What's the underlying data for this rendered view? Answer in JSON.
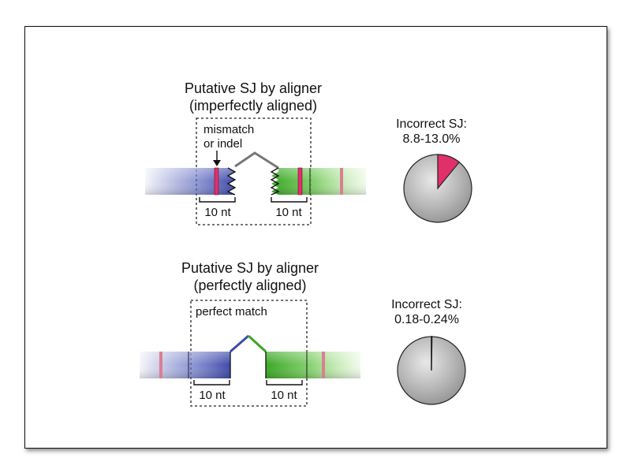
{
  "panels": {
    "top": {
      "title_line1": "Putative SJ by aligner",
      "title_line2": "(imperfectly aligned)",
      "annotation_line1": "mismatch",
      "annotation_line2": "or indel",
      "left_bracket_label": "10 nt",
      "right_bracket_label": "10 nt",
      "pie_label_line1": "Incorrect SJ:",
      "pie_label_line2": "8.8-13.0%",
      "incorrect_fraction": 0.109
    },
    "bottom": {
      "title_line1": "Putative SJ by aligner",
      "title_line2": "(perfectly aligned)",
      "annotation": "perfect match",
      "left_bracket_label": "10 nt",
      "right_bracket_label": "10 nt",
      "pie_label_line1": "Incorrect SJ:",
      "pie_label_line2": "0.18-0.24%",
      "incorrect_fraction": 0.0021
    }
  },
  "colors": {
    "left_exon": "#4a55b0",
    "right_exon": "#3fae2a",
    "mismatch_mark": "#e0306a",
    "variant_mark": "#d98090",
    "intron_gray": "#777777",
    "pie_fill": "#b8b8b8",
    "incorrect_wedge": "#e0306a"
  }
}
